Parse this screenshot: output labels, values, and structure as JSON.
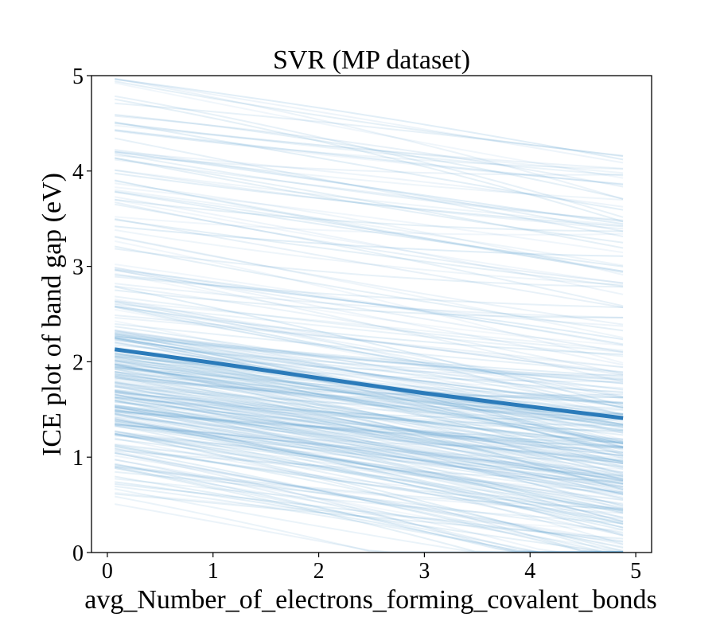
{
  "chart_data": {
    "type": "line",
    "title": "SVR (MP dataset)",
    "xlabel": "avg_Number_of_electrons_forming_covalent_bonds",
    "ylabel": "ICE plot of band gap (eV)",
    "xlim": [
      -0.15,
      5.15
    ],
    "ylim": [
      0,
      5
    ],
    "xticks": [
      "0",
      "1",
      "2",
      "3",
      "4",
      "5"
    ],
    "yticks": [
      "0",
      "1",
      "2",
      "3",
      "4",
      "5"
    ],
    "grid": false,
    "legend": "none",
    "colors": {
      "mean_line": "#2b7bba",
      "ice_lines": "#5b9fd0"
    },
    "x": [
      0.07,
      1.0,
      2.0,
      3.0,
      4.0,
      4.88
    ],
    "series": [
      {
        "values": [
          2.13,
          1.99,
          1.83,
          1.67,
          1.53,
          1.41
        ]
      }
    ],
    "ice_curves": {
      "description_count": 300,
      "start_range": [
        0.05,
        4.95
      ],
      "typical_slope_per_unit": -0.16
    }
  }
}
